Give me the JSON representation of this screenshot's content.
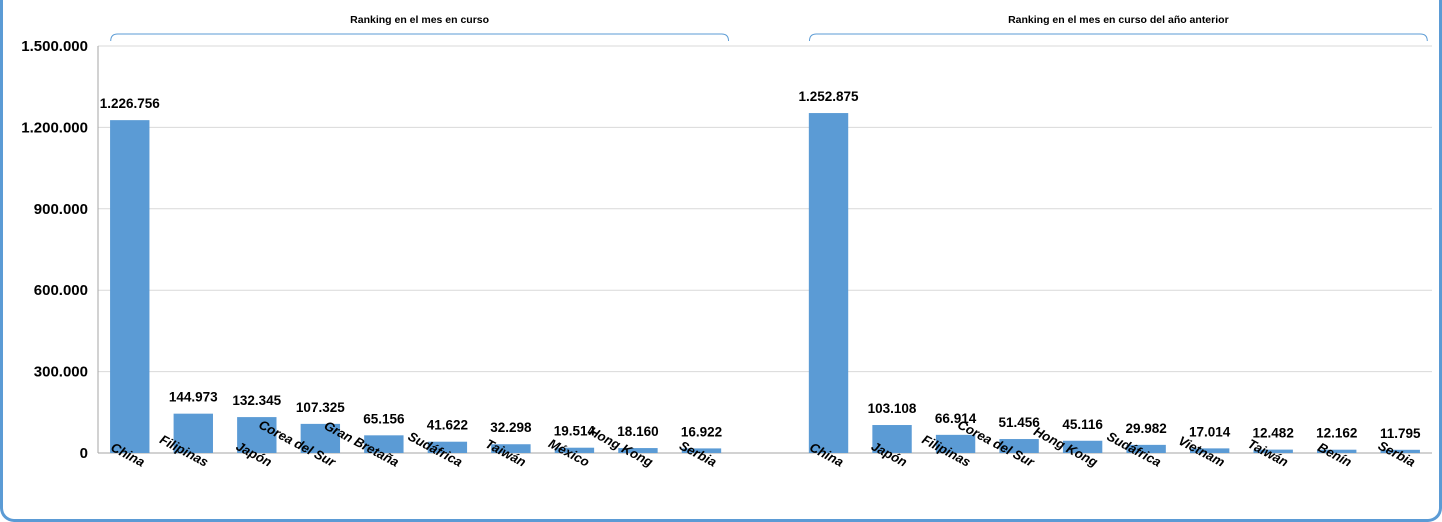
{
  "chart_data": {
    "type": "bar",
    "ylim": [
      0,
      1500000
    ],
    "yticks": [
      {
        "value": 0,
        "label": "0"
      },
      {
        "value": 300000,
        "label": "300.000"
      },
      {
        "value": 600000,
        "label": "600.000"
      },
      {
        "value": 900000,
        "label": "900.000"
      },
      {
        "value": 1200000,
        "label": "1.200.000"
      },
      {
        "value": 1500000,
        "label": "1.500.000"
      }
    ],
    "grid": true,
    "bar_color": "#5b9bd5",
    "groups": [
      {
        "label": "Ranking en el mes en curso",
        "categories": [
          "China",
          "Filipinas",
          "Japón",
          "Corea del Sur",
          "Gran Bretaña",
          "Sudáfrica",
          "Taiwán",
          "México",
          "Hong Kong",
          "Serbia"
        ],
        "values": [
          1226756,
          144973,
          132345,
          107325,
          65156,
          41622,
          32298,
          19514,
          18160,
          16922
        ],
        "value_labels": [
          "1.226.756",
          "144.973",
          "132.345",
          "107.325",
          "65.156",
          "41.622",
          "32.298",
          "19.514",
          "18.160",
          "16.922"
        ]
      },
      {
        "label": "Ranking en el mes en curso del año anterior",
        "categories": [
          "China",
          "Japón",
          "Filipinas",
          "Corea del Sur",
          "Hong Kong",
          "Sudáfrica",
          "Vietnam",
          "Taiwán",
          "Benín",
          "Serbia"
        ],
        "values": [
          1252875,
          103108,
          66914,
          51456,
          45116,
          29982,
          17014,
          12482,
          12162,
          11795
        ],
        "value_labels": [
          "1.252.875",
          "103.108",
          "66.914",
          "51.456",
          "45.116",
          "29.982",
          "17.014",
          "12.482",
          "12.162",
          "11.795"
        ]
      }
    ]
  }
}
